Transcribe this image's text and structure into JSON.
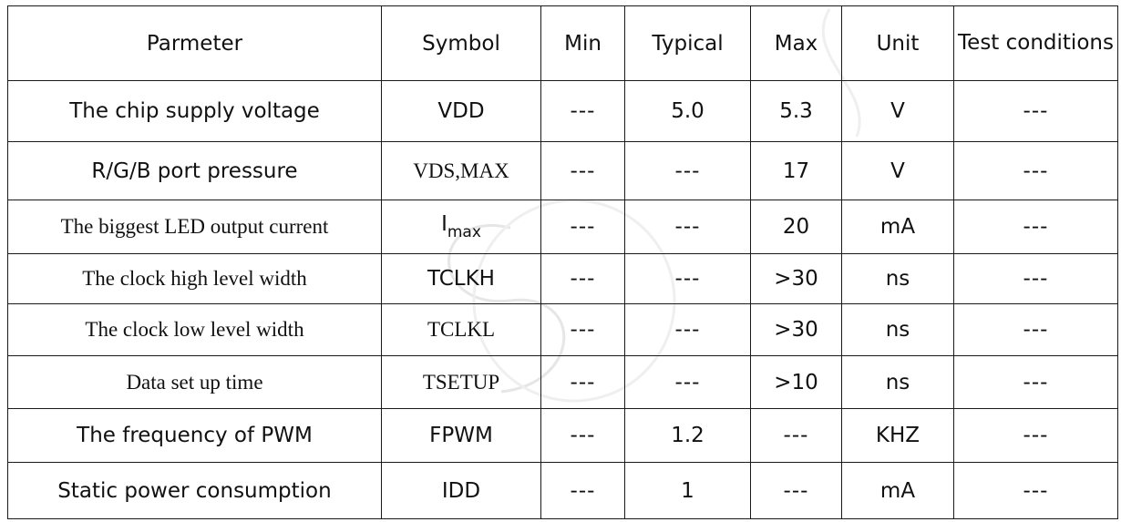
{
  "headers": [
    "Parmeter",
    "Symbol",
    "Min",
    "Typical",
    "Max",
    "Unit",
    "Test conditions"
  ],
  "rows": [
    {
      "parameter": "The chip supply voltage",
      "symbol": "VDD",
      "min": "---",
      "typical": "5.0",
      "max": "5.3",
      "unit": "V",
      "test": "---"
    },
    {
      "parameter": "R/G/B port pressure",
      "symbol": "VDS,MAX",
      "min": "---",
      "typical": "---",
      "max": "17",
      "unit": "V",
      "test": "---"
    },
    {
      "parameter": "The biggest LED output current",
      "symbol_main": "I",
      "symbol_sub": "max",
      "min": "---",
      "typical": "---",
      "max": "20",
      "unit": "mA",
      "test": "---"
    },
    {
      "parameter": "The clock high level width",
      "symbol": "TCLKH",
      "min": "---",
      "typical": "---",
      "max": ">30",
      "unit": "ns",
      "test": "---"
    },
    {
      "parameter": "The clock low level width",
      "symbol": "TCLKL",
      "min": "---",
      "typical": "---",
      "max": ">30",
      "unit": "ns",
      "test": "---"
    },
    {
      "parameter": "Data set up time",
      "symbol": "TSETUP",
      "min": "---",
      "typical": "---",
      "max": ">10",
      "unit": "ns",
      "test": "---"
    },
    {
      "parameter": "The frequency of PWM",
      "symbol": "FPWM",
      "min": "---",
      "typical": "1.2",
      "max": "---",
      "unit": "KHZ",
      "test": "---"
    },
    {
      "parameter": "Static power consumption",
      "symbol": "IDD",
      "min": "---",
      "typical": "1",
      "max": "---",
      "unit": "mA",
      "test": "---"
    }
  ]
}
